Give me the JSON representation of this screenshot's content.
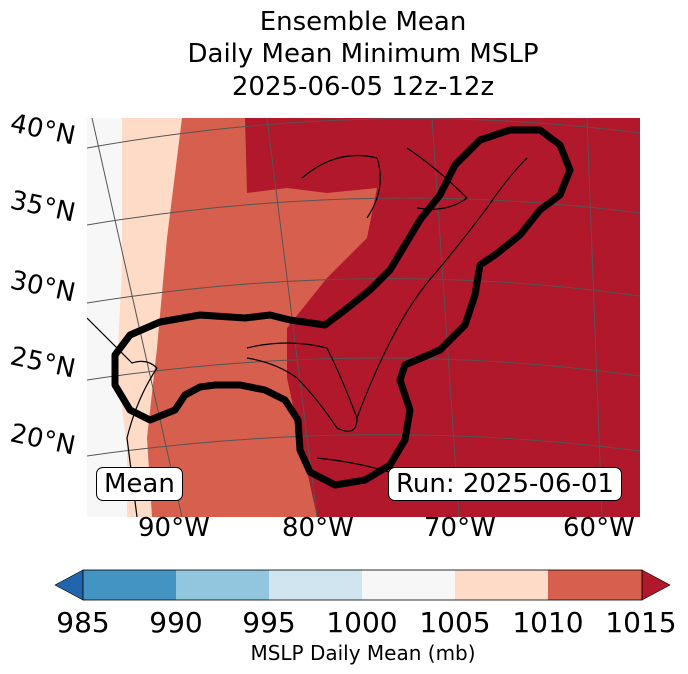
{
  "title": {
    "line1": "Ensemble Mean",
    "line2": "Daily Mean Minimum MSLP",
    "line3": "2025-06-05 12z-12z"
  },
  "map": {
    "lat_labels": [
      "40°N",
      "35°N",
      "30°N",
      "25°N",
      "20°N"
    ],
    "lon_labels": [
      "90°W",
      "80°W",
      "70°W",
      "60°W"
    ],
    "mean_label": "Mean",
    "run_label": "Run: 2025-06-01"
  },
  "colorbar": {
    "ticks": [
      "985",
      "990",
      "995",
      "1000",
      "1005",
      "1010",
      "1015"
    ],
    "label": "MSLP Daily Mean (mb)",
    "colors": {
      "under": "#2166ac",
      "b985_990": "#4393c3",
      "b990_995": "#92c5de",
      "b995_1000": "#d1e5f0",
      "b1000_1005": "#f7f7f7",
      "b1005_1010": "#fddbc7",
      "b1010_1015": "#d6604d",
      "over": "#b2182b"
    }
  }
}
